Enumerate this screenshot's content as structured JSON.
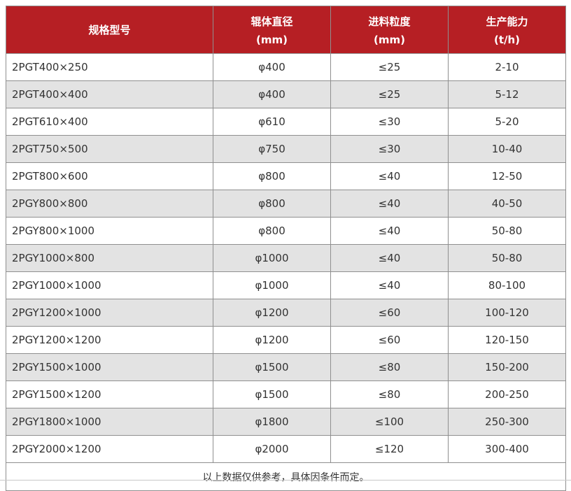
{
  "colors": {
    "header_bg": "#b61f24",
    "header_text": "#ffffff",
    "row_alt_bg": "#e3e3e3",
    "border": "#8f8f8f",
    "text": "#333333"
  },
  "chart_data": {
    "type": "table",
    "title": "",
    "columns": [
      {
        "label": "规格型号",
        "unit": ""
      },
      {
        "label": "辊体直径",
        "unit": "(mm)"
      },
      {
        "label": "进料粒度",
        "unit": "(mm)"
      },
      {
        "label": "生产能力",
        "unit": "(t/h)"
      }
    ],
    "rows": [
      [
        "2PGT400×250",
        "φ400",
        "≤25",
        "2-10"
      ],
      [
        "2PGT400×400",
        "φ400",
        "≤25",
        "5-12"
      ],
      [
        "2PGT610×400",
        "φ610",
        "≤30",
        "5-20"
      ],
      [
        "2PGT750×500",
        "φ750",
        "≤30",
        "10-40"
      ],
      [
        "2PGT800×600",
        "φ800",
        "≤40",
        "12-50"
      ],
      [
        "2PGY800×800",
        "φ800",
        "≤40",
        "40-50"
      ],
      [
        "2PGY800×1000",
        "φ800",
        "≤40",
        "50-80"
      ],
      [
        "2PGY1000×800",
        "φ1000",
        "≤40",
        "50-80"
      ],
      [
        "2PGY1000×1000",
        "φ1000",
        "≤40",
        "80-100"
      ],
      [
        "2PGY1200×1000",
        "φ1200",
        "≤60",
        "100-120"
      ],
      [
        "2PGY1200×1200",
        "φ1200",
        "≤60",
        "120-150"
      ],
      [
        "2PGY1500×1000",
        "φ1500",
        "≤80",
        "150-200"
      ],
      [
        "2PGY1500×1200",
        "φ1500",
        "≤80",
        "200-250"
      ],
      [
        "2PGY1800×1000",
        "φ1800",
        "≤100",
        "250-300"
      ],
      [
        "2PGY2000×1200",
        "φ2000",
        "≤120",
        "300-400"
      ]
    ],
    "footnote": "以上数据仅供参考，具体因条件而定。"
  }
}
